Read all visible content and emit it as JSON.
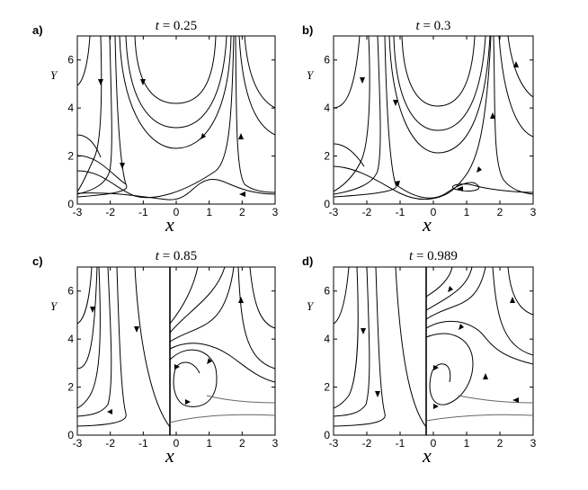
{
  "figure": {
    "x_axis_label": "x",
    "y_axis_label": "Y",
    "x_ticks": [
      -3,
      -2,
      -1,
      0,
      1,
      2,
      3
    ],
    "y_ticks": [
      0,
      2,
      4,
      6
    ],
    "x_range": [
      -3,
      3
    ],
    "y_range": [
      0,
      7
    ],
    "line_color": "#000000",
    "panels": [
      {
        "letter": "a)",
        "t_label": "t",
        "t_value": "= 0.25"
      },
      {
        "letter": "b)",
        "t_label": "t",
        "t_value": "= 0.3"
      },
      {
        "letter": "c)",
        "t_label": "t",
        "t_value": "= 0.85"
      },
      {
        "letter": "d)",
        "t_label": "t",
        "t_value": "= 0.989"
      }
    ]
  }
}
